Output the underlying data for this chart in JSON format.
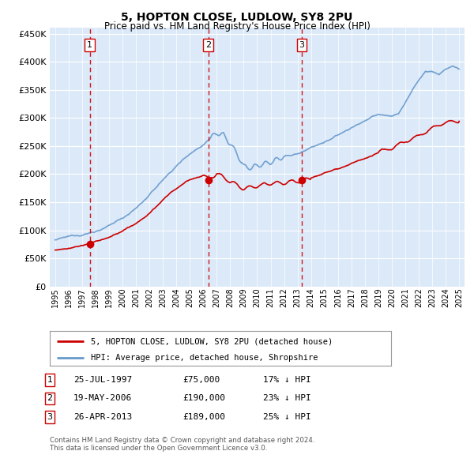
{
  "title": "5, HOPTON CLOSE, LUDLOW, SY8 2PU",
  "subtitle": "Price paid vs. HM Land Registry's House Price Index (HPI)",
  "footer_line1": "Contains HM Land Registry data © Crown copyright and database right 2024.",
  "footer_line2": "This data is licensed under the Open Government Licence v3.0.",
  "legend_red": "5, HOPTON CLOSE, LUDLOW, SY8 2PU (detached house)",
  "legend_blue": "HPI: Average price, detached house, Shropshire",
  "transactions": [
    {
      "num": 1,
      "date": "25-JUL-1997",
      "price": 75000,
      "pct": "17%",
      "year": 1997.57
    },
    {
      "num": 2,
      "date": "19-MAY-2006",
      "price": 190000,
      "pct": "23%",
      "year": 2006.38
    },
    {
      "num": 3,
      "date": "26-APR-2013",
      "price": 189000,
      "pct": "25%",
      "year": 2013.32
    }
  ],
  "xlim": [
    1994.6,
    2025.4
  ],
  "ylim": [
    0,
    460000
  ],
  "yticks": [
    0,
    50000,
    100000,
    150000,
    200000,
    250000,
    300000,
    350000,
    400000,
    450000
  ],
  "plot_bg": "#dce9f8",
  "grid_color": "#ffffff",
  "red_color": "#cc0000",
  "blue_color": "#6699cc",
  "hpi_anchors_x": [
    1995,
    1996,
    1997,
    1998,
    1999,
    2000,
    2001,
    2002,
    2003,
    2004,
    2005,
    2006,
    2007,
    2007.5,
    2008,
    2008.5,
    2009,
    2009.5,
    2010,
    2010.5,
    2011,
    2011.5,
    2012,
    2012.5,
    2013,
    2013.5,
    2014,
    2015,
    2016,
    2017,
    2018,
    2019,
    2020,
    2020.5,
    2021,
    2022,
    2022.5,
    2023,
    2023.5,
    2024,
    2024.5,
    2025
  ],
  "hpi_anchors_y": [
    83000,
    87000,
    92000,
    99000,
    108000,
    122000,
    140000,
    163000,
    190000,
    215000,
    238000,
    255000,
    280000,
    275000,
    260000,
    240000,
    218000,
    215000,
    218000,
    222000,
    225000,
    228000,
    232000,
    235000,
    238000,
    242000,
    250000,
    260000,
    272000,
    285000,
    298000,
    308000,
    305000,
    310000,
    330000,
    370000,
    385000,
    385000,
    380000,
    390000,
    395000,
    390000
  ],
  "red_anchors_x": [
    1995,
    1996,
    1997,
    1997.57,
    1998,
    1999,
    2000,
    2001,
    2002,
    2003,
    2004,
    2005,
    2006,
    2006.38,
    2007,
    2008,
    2009,
    2010,
    2011,
    2012,
    2013,
    2013.32,
    2014,
    2015,
    2016,
    2017,
    2018,
    2019,
    2020,
    2021,
    2022,
    2023,
    2024,
    2025
  ],
  "red_anchors_y": [
    65000,
    68000,
    73000,
    75000,
    79000,
    86000,
    96000,
    110000,
    128000,
    152000,
    172000,
    188000,
    197000,
    190000,
    200000,
    185000,
    175000,
    180000,
    185000,
    183000,
    188000,
    189000,
    196000,
    206000,
    215000,
    225000,
    232000,
    240000,
    248000,
    260000,
    270000,
    285000,
    295000,
    296000
  ]
}
